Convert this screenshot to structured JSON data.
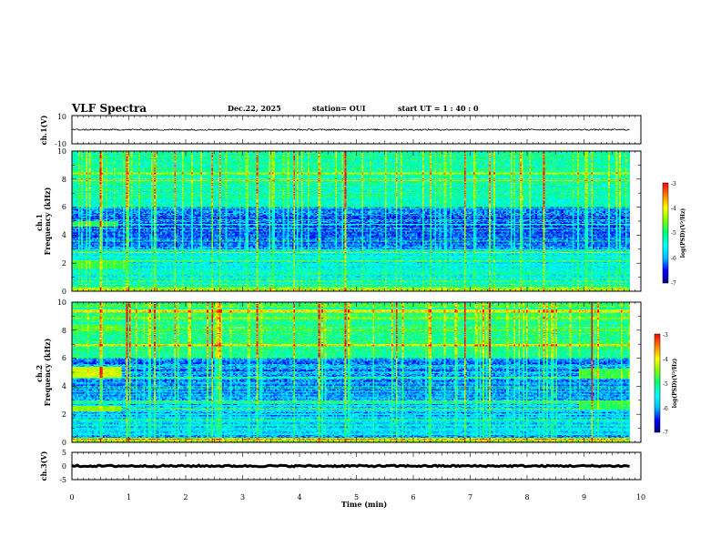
{
  "header": {
    "title": "VLF Spectra",
    "date": "Dec.22, 2025",
    "station": "station= OUI",
    "start_ut": "start  UT =   1 : 40 : 0"
  },
  "colors": {
    "colormap": [
      "#00008b",
      "#0000ff",
      "#00bfff",
      "#00ffff",
      "#00ff7f",
      "#7fff00",
      "#ffff00",
      "#ff8000",
      "#ff0000"
    ],
    "trace": "#000000"
  },
  "chart_data": [
    {
      "type": "line",
      "name": "ch1_waveform",
      "ylabel": "ch.1(V)",
      "ylim": [
        -10,
        10
      ],
      "y_ticks": [
        "10",
        "-10"
      ],
      "x_range_min": [
        0,
        9.8
      ],
      "approx_level": 0,
      "approx_noise_amplitude": 0.5
    },
    {
      "type": "heatmap",
      "name": "ch1_spectrogram",
      "ylabel": "ch.1\nFrequency (kHz)",
      "ylim": [
        0,
        10
      ],
      "y_ticks": [
        "0",
        "2",
        "4",
        "6",
        "8",
        "10"
      ],
      "x_range_min": [
        0,
        9.8
      ],
      "colorbar": {
        "label": "log(PSD)(V²/Hz)",
        "range": [
          -7,
          -3
        ],
        "ticks": [
          "-3",
          "-4",
          "-5",
          "-6",
          "-7"
        ]
      },
      "bands": [
        {
          "f_min": 0.3,
          "f_max": 3.0,
          "level": -5.5
        },
        {
          "f_min": 3.0,
          "f_max": 6.0,
          "level": -6.2
        },
        {
          "f_min": 6.0,
          "f_max": 10.0,
          "level": -5.2
        }
      ],
      "features": [
        {
          "t0": 0.0,
          "t1": 0.95,
          "f0": 1.6,
          "f1": 2.2,
          "level": -4.8
        },
        {
          "t0": 0.0,
          "t1": 0.8,
          "f0": 4.6,
          "f1": 5.0,
          "level": -4.9
        }
      ],
      "impulses_near_min": [
        0.5,
        0.95,
        1.45,
        1.8,
        2.45,
        2.6,
        3.25,
        3.9,
        4.35,
        4.8,
        5.7,
        6.3,
        6.9,
        7.35,
        8.3,
        9.15
      ]
    },
    {
      "type": "heatmap",
      "name": "ch2_spectrogram",
      "ylabel": "ch.2\nFrequency (kHz)",
      "ylim": [
        0,
        10
      ],
      "y_ticks": [
        "0",
        "2",
        "4",
        "6",
        "8",
        "10"
      ],
      "x_range_min": [
        0,
        9.8
      ],
      "colorbar": {
        "label": "log(PSD)(V²/Hz)",
        "range": [
          -7,
          -3
        ],
        "ticks": [
          "-3",
          "-4",
          "-5",
          "-6",
          "-7"
        ]
      },
      "bands": [
        {
          "f_min": 0.3,
          "f_max": 3.0,
          "level": -5.8
        },
        {
          "f_min": 3.0,
          "f_max": 6.0,
          "level": -6.0
        },
        {
          "f_min": 6.0,
          "f_max": 10.0,
          "level": -5.0
        }
      ],
      "features": [
        {
          "t0": 0.0,
          "t1": 0.85,
          "f0": 4.6,
          "f1": 5.4,
          "level": -4.2
        },
        {
          "t0": 0.0,
          "t1": 0.85,
          "f0": 2.2,
          "f1": 2.6,
          "level": -4.5
        },
        {
          "t0": 0.0,
          "t1": 0.85,
          "f0": 8.0,
          "f1": 8.4,
          "level": -4.7
        },
        {
          "t0": 8.9,
          "t1": 9.8,
          "f0": 4.5,
          "f1": 5.3,
          "level": -4.8
        },
        {
          "t0": 8.9,
          "t1": 9.8,
          "f0": 2.4,
          "f1": 3.0,
          "level": -4.9
        },
        {
          "t0": 8.9,
          "t1": 9.8,
          "f0": 6.7,
          "f1": 7.2,
          "level": -5.0
        }
      ],
      "impulses_near_min": [
        0.5,
        0.95,
        1.45,
        1.8,
        2.45,
        2.6,
        3.25,
        3.9,
        4.35,
        4.8,
        5.7,
        6.3,
        6.9,
        7.35,
        8.3,
        9.15
      ]
    },
    {
      "type": "line",
      "name": "ch3_waveform",
      "ylabel": "ch.3(V)",
      "xlabel": "Time (min)",
      "ylim": [
        -5,
        5
      ],
      "y_ticks": [
        "5",
        "0",
        "-5"
      ],
      "x_ticks": [
        "0",
        "1",
        "2",
        "3",
        "4",
        "5",
        "6",
        "7",
        "8",
        "9",
        "10"
      ],
      "xlim": [
        0,
        10
      ],
      "x_range_min": [
        0,
        9.8
      ],
      "approx_level": 0,
      "approx_noise_amplitude": 0.3
    }
  ]
}
